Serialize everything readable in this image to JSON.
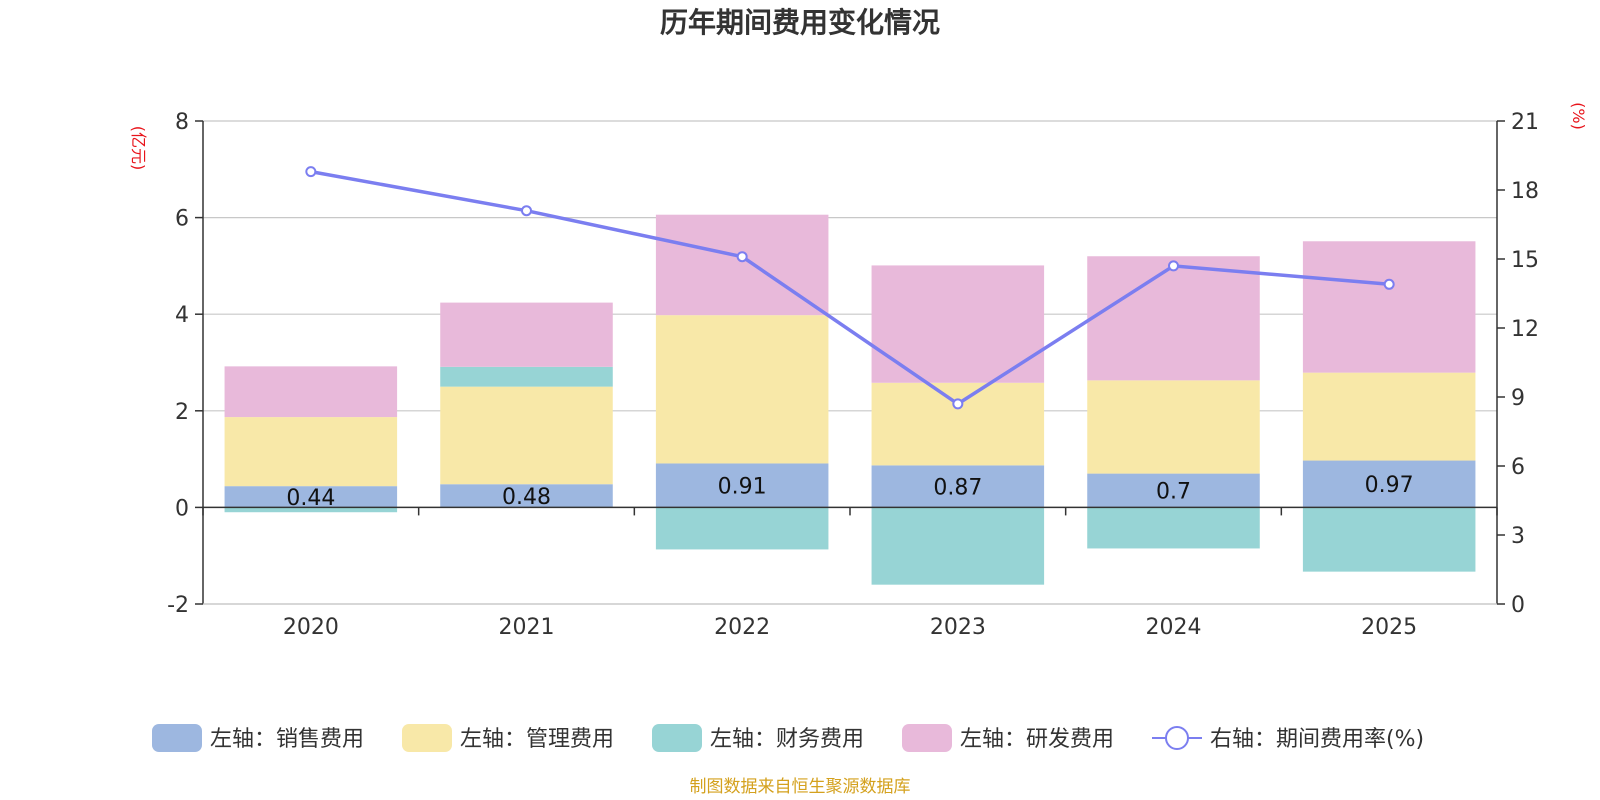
{
  "chart_data": {
    "type": "bar",
    "stacked": true,
    "title": "历年期间费用变化情况",
    "categories": [
      "2020",
      "2021",
      "2022",
      "2023",
      "2024",
      "2025"
    ],
    "left_axis": {
      "unit_label": "(亿元)",
      "ylim": [
        -2,
        8
      ],
      "ticks": [
        -2,
        0,
        2,
        4,
        6,
        8
      ],
      "unit_color": "#e8141b"
    },
    "right_axis": {
      "unit_label": "(%)",
      "ylim": [
        0,
        21
      ],
      "ticks": [
        0,
        3,
        6,
        9,
        12,
        15,
        18,
        21
      ],
      "unit_color": "#e8141b"
    },
    "series": [
      {
        "name": "左轴：销售费用",
        "axis": "left",
        "color": "#9db7e0",
        "values": [
          0.44,
          0.48,
          0.91,
          0.87,
          0.7,
          0.97
        ],
        "labels": [
          "0.44",
          "0.48",
          "0.91",
          "0.87",
          "0.7",
          "0.97"
        ]
      },
      {
        "name": "左轴：管理费用",
        "axis": "left",
        "color": "#f8e8a8",
        "values": [
          1.43,
          2.02,
          3.07,
          1.71,
          1.93,
          1.82
        ]
      },
      {
        "name": "左轴：财务费用",
        "axis": "left",
        "color": "#97d4d5",
        "values": [
          -0.1,
          0.41,
          -0.87,
          -1.6,
          -0.85,
          -1.33
        ]
      },
      {
        "name": "左轴：研发费用",
        "axis": "left",
        "color": "#e8b9da",
        "values": [
          1.05,
          1.33,
          2.08,
          2.43,
          2.57,
          2.72
        ]
      }
    ],
    "line_series": {
      "name": "右轴：期间费用率(%)",
      "axis": "right",
      "color": "#7b7ef0",
      "values": [
        18.8,
        17.1,
        15.1,
        8.7,
        14.7,
        13.9
      ]
    },
    "source": "制图数据来自恒生聚源数据库",
    "source_color": "#d4a11e"
  }
}
